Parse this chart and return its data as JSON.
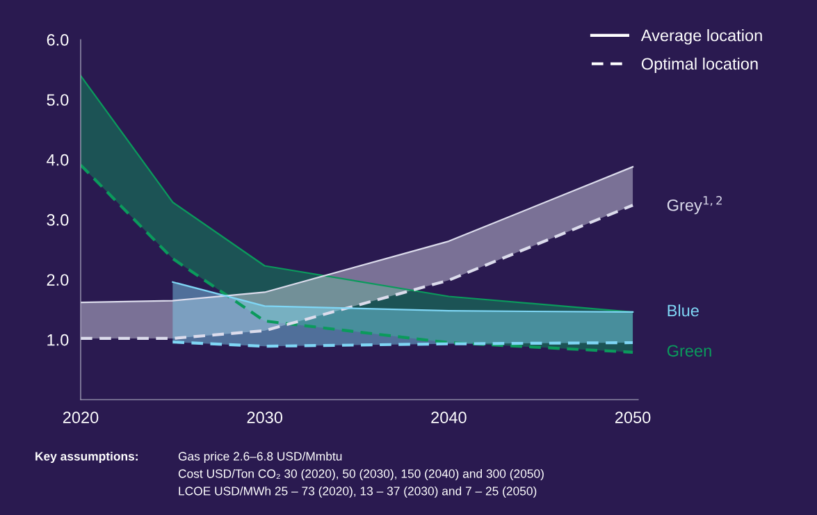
{
  "chart_data": {
    "type": "line",
    "x": [
      2020,
      2025,
      2030,
      2040,
      2050
    ],
    "xlim": [
      2020,
      2050.3
    ],
    "xticks": [
      2020,
      2030,
      2040,
      2050
    ],
    "ylim": [
      0,
      6
    ],
    "yticks": [
      {
        "value": 1,
        "label": "1.0"
      },
      {
        "value": 2,
        "label": "2.0"
      },
      {
        "value": 3,
        "label": "3.0"
      },
      {
        "value": 4,
        "label": "4.0"
      },
      {
        "value": 5,
        "label": "5.0"
      },
      {
        "value": 6,
        "label": "6.0"
      }
    ],
    "series": [
      {
        "color": "#0b9a5c",
        "values": [
          5.4,
          3.29,
          2.23,
          1.72,
          1.46
        ],
        "lower": [
          3.91,
          2.35,
          1.31,
          0.95,
          0.79
        ],
        "upper": [
          5.4,
          3.29,
          2.23,
          1.72,
          1.46
        ],
        "line_style": "solid"
      },
      {
        "name": "Green",
        "color": "#0b9a5c",
        "values": [
          3.91,
          2.35,
          1.31,
          0.95,
          0.79
        ],
        "line_style": "dashed"
      },
      {
        "color": "#dcdcec",
        "values": [
          1.62,
          1.65,
          1.79,
          2.64,
          3.88
        ],
        "lower": [
          1.02,
          1.02,
          1.15,
          1.99,
          3.24
        ],
        "upper": [
          1.62,
          1.65,
          1.79,
          2.64,
          3.88
        ],
        "line_style": "solid"
      },
      {
        "name": "Grey$^{1,2}$",
        "color": "#dcdcec",
        "values": [
          1.02,
          1.02,
          1.15,
          1.99,
          3.24
        ],
        "line_style": "dashed"
      },
      {
        "name": "Blue",
        "color": "#7fd6f5",
        "values": [
          null,
          1.96,
          1.56,
          1.48,
          1.46
        ],
        "lower": [
          null,
          0.96,
          0.89,
          0.93,
          0.95
        ],
        "upper": [
          null,
          1.96,
          1.56,
          1.48,
          1.46
        ],
        "line_style": "solid"
      },
      {
        "color": "#7fd6f5",
        "values": [
          null,
          0.96,
          0.89,
          0.93,
          0.95
        ],
        "line_style": "dashed"
      },
      {
        "name": "Average location",
        "color": "#ffffff",
        "values": [
          null,
          null,
          null,
          null,
          null
        ],
        "line_style": "solid"
      },
      {
        "name": "Optimal location",
        "color": "#ffffff",
        "values": [
          null,
          null,
          null,
          null,
          null
        ],
        "line_style": "dashed"
      }
    ],
    "legend": "top right",
    "grid": false,
    "annotations": [
      "Key assumptions:",
      "Gas price 2.6–6.8 USD/Mmbtu",
      "Cost USD/Ton CO₂ 30 (2020), 50 (2030), 150 (2040) and 300 (2050)",
      "LCOE USD/MWh 25 – 73 (2020), 13 – 37 (2030) and 7 – 25 (2050)"
    ]
  }
}
